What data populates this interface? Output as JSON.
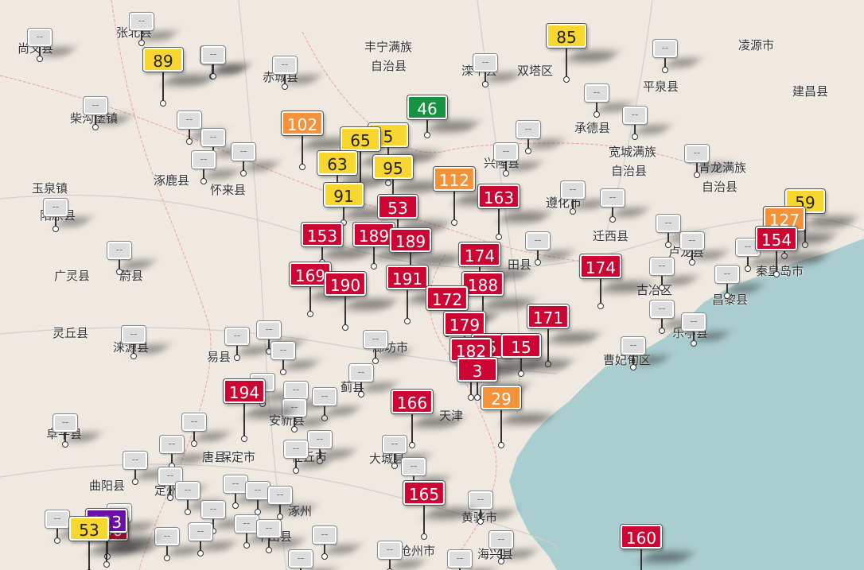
{
  "colors": {
    "good": "#169242",
    "moderate": "#f7d72f",
    "usg": "#f4923c",
    "unhealthy": "#cc0532",
    "very_unhealthy": "#6b0fa8",
    "nodata": "#dddddd",
    "water": "#aacdcf",
    "land": "#efe9e1"
  },
  "place_labels": [
    "张北县",
    "尚义县",
    "丰宁满族",
    "自治县",
    "滦平县",
    "双塔区",
    "凌源市",
    "赤城县",
    "平泉县",
    "建昌县",
    "柴沟堡镇",
    "承德县",
    "宽城满族",
    "自治县",
    "青龙满族",
    "自治县",
    "兴隆县",
    "玉泉镇",
    "涿鹿县",
    "怀来县",
    "遵化市",
    "阳原县",
    "迁西县",
    "卢龙县",
    "秦皇岛市",
    "广灵县",
    "蔚县",
    "田县",
    "古冶区",
    "昌黎县",
    "灵丘县",
    "涞源县",
    "易县",
    "廊坊市",
    "乐亭县",
    "曹妃甸区",
    "安新县",
    "保定市",
    "任丘市",
    "大城县",
    "唐县",
    "定州市",
    "黄骅市",
    "曲阳县",
    "沧州市",
    "海兴县",
    "阜平县",
    "涿州",
    "天津",
    "平山县",
    "蓟县"
  ],
  "aqi_markers": [
    "89",
    "85",
    "46",
    "102",
    "65",
    "5",
    "63",
    "95",
    "112",
    "163",
    "91",
    "53",
    "153",
    "189",
    "189",
    "174",
    "154",
    "127",
    "59",
    "169",
    "190",
    "191",
    "188",
    "174",
    "172",
    "171",
    "179",
    "182",
    "5",
    "3",
    "166",
    "194",
    "29",
    "165",
    "223",
    "53",
    "160",
    "166",
    "15"
  ],
  "nodata_label": "--"
}
